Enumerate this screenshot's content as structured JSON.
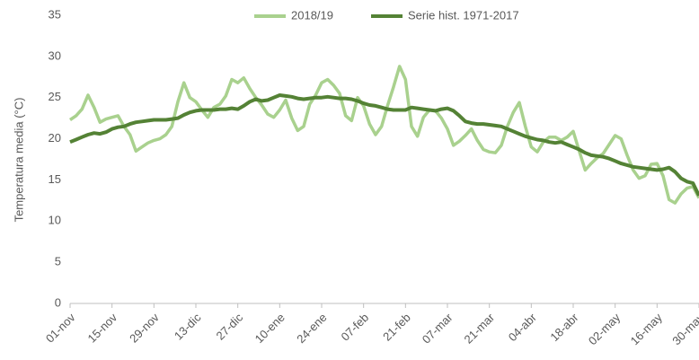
{
  "chart_data": {
    "type": "line",
    "y_label": "Temperatura media (°C)",
    "categories": [
      "01-nov",
      null,
      null,
      null,
      null,
      null,
      null,
      "15-nov",
      null,
      null,
      null,
      null,
      null,
      null,
      "29-nov",
      null,
      null,
      null,
      null,
      null,
      null,
      "13-dic",
      null,
      null,
      null,
      null,
      null,
      null,
      "27-dic",
      null,
      null,
      null,
      null,
      null,
      null,
      "10-ene",
      null,
      null,
      null,
      null,
      null,
      null,
      "24-ene",
      null,
      null,
      null,
      null,
      null,
      null,
      "07-feb",
      null,
      null,
      null,
      null,
      null,
      null,
      "21-feb",
      null,
      null,
      null,
      null,
      null,
      null,
      "07-mar",
      null,
      null,
      null,
      null,
      null,
      null,
      "21-mar",
      null,
      null,
      null,
      null,
      null,
      null,
      "04-abr",
      null,
      null,
      null,
      null,
      null,
      null,
      "18-abr",
      null,
      null,
      null,
      null,
      null,
      null,
      "02-may",
      null,
      null,
      null,
      null,
      null,
      null,
      "16-may",
      null,
      null,
      null,
      null,
      null,
      null,
      "30-may"
    ],
    "series": [
      {
        "name": "2018/19",
        "color": "#a9d18e",
        "values": [
          22.3,
          22.8,
          23.6,
          25.3,
          23.8,
          22.0,
          22.4,
          22.6,
          22.8,
          21.5,
          20.5,
          18.5,
          19.0,
          19.5,
          19.8,
          20.0,
          20.5,
          21.5,
          24.5,
          26.8,
          25.0,
          24.5,
          23.5,
          22.6,
          23.8,
          24.2,
          25.2,
          27.2,
          26.8,
          27.4,
          26.1,
          25.0,
          24.1,
          23.0,
          22.6,
          23.5,
          24.7,
          22.5,
          21.0,
          21.5,
          24.2,
          25.3,
          26.8,
          27.2,
          26.5,
          25.5,
          22.8,
          22.2,
          25.0,
          24.0,
          21.8,
          20.5,
          21.5,
          24.0,
          26.3,
          28.8,
          27.2,
          21.5,
          20.3,
          22.6,
          23.5,
          23.4,
          22.5,
          21.2,
          19.2,
          19.7,
          20.4,
          21.2,
          19.8,
          18.7,
          18.4,
          18.3,
          19.2,
          21.5,
          23.2,
          24.4,
          21.5,
          19.0,
          18.4,
          19.6,
          20.2,
          20.2,
          19.8,
          20.2,
          20.9,
          18.5,
          16.2,
          17.0,
          17.7,
          18.2,
          19.3,
          20.4,
          20.0,
          18.0,
          16.2,
          15.2,
          15.5,
          16.9,
          17.0,
          15.5,
          12.6,
          12.2,
          13.3,
          14.0,
          14.2,
          12.8
        ]
      },
      {
        "name": "Serie hist. 1971-2017",
        "color": "#548235",
        "values": [
          19.6,
          19.9,
          20.2,
          20.5,
          20.7,
          20.6,
          20.8,
          21.2,
          21.4,
          21.5,
          21.8,
          22.0,
          22.1,
          22.2,
          22.3,
          22.3,
          22.3,
          22.4,
          22.5,
          22.9,
          23.2,
          23.4,
          23.5,
          23.5,
          23.5,
          23.6,
          23.6,
          23.7,
          23.6,
          24.0,
          24.5,
          24.8,
          24.6,
          24.7,
          25.0,
          25.3,
          25.2,
          25.1,
          24.9,
          24.8,
          24.9,
          25.0,
          25.0,
          25.1,
          25.0,
          24.9,
          24.9,
          24.8,
          24.6,
          24.3,
          24.1,
          24.0,
          23.8,
          23.6,
          23.5,
          23.5,
          23.5,
          23.8,
          23.7,
          23.6,
          23.5,
          23.4,
          23.6,
          23.7,
          23.4,
          22.8,
          22.1,
          21.9,
          21.8,
          21.8,
          21.7,
          21.6,
          21.5,
          21.2,
          20.9,
          20.6,
          20.3,
          20.1,
          19.9,
          19.8,
          19.6,
          19.5,
          19.6,
          19.3,
          19.0,
          18.7,
          18.3,
          18.0,
          17.9,
          17.8,
          17.6,
          17.3,
          17.0,
          16.8,
          16.6,
          16.5,
          16.4,
          16.3,
          16.2,
          16.3,
          16.5,
          16.0,
          15.2,
          14.8,
          14.6,
          13.1
        ]
      }
    ],
    "ylim": [
      0,
      35
    ],
    "yticks": [
      0,
      5,
      10,
      15,
      20,
      25,
      30,
      35
    ],
    "grid": false,
    "legend": "top"
  }
}
